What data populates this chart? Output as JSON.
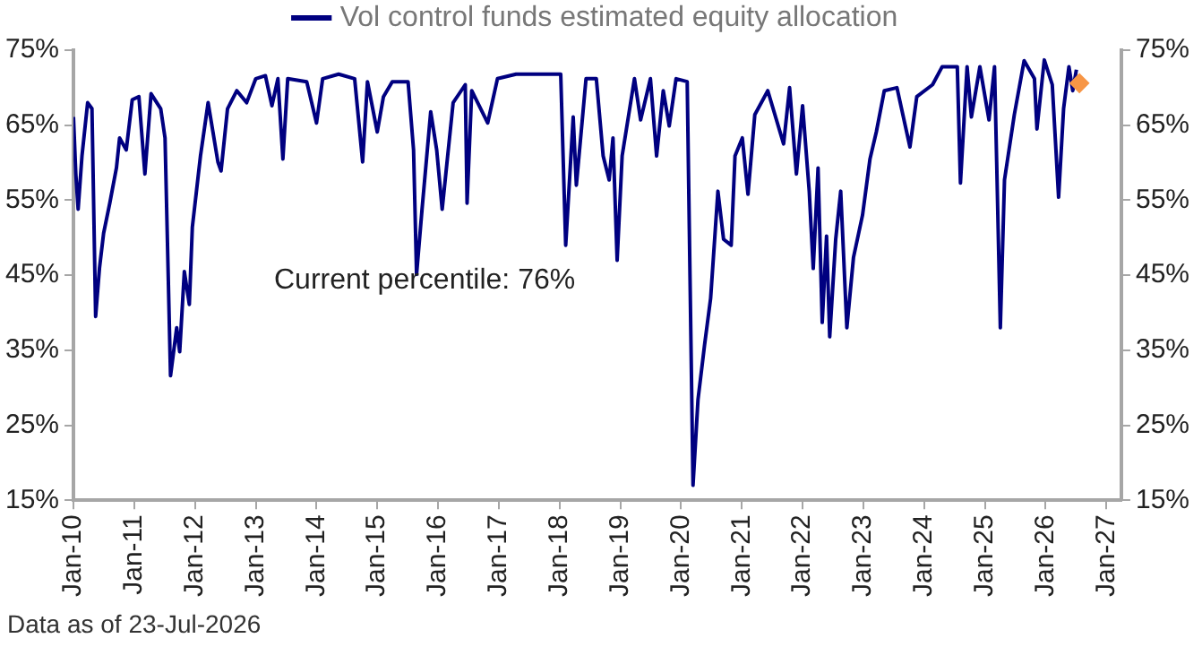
{
  "chart_data": {
    "type": "line",
    "annotations": [
      "Current percentile: 76%",
      "Data as of 23-Jul-2026"
    ],
    "series": [
      {
        "name": "Vol control funds estimated equity allocation",
        "color": "#000080",
        "x": [
          "2010-01-01",
          "2010-01-15",
          "2010-01-29",
          "2010-02-21",
          "2010-03-27",
          "2010-04-22",
          "2010-05-14",
          "2010-06-06",
          "2010-07-01",
          "2010-08-07",
          "2010-09-16",
          "2010-10-05",
          "2010-11-14",
          "2010-12-20",
          "2011-01-29",
          "2011-03-06",
          "2011-04-12",
          "2011-06-09",
          "2011-07-05",
          "2011-08-07",
          "2011-09-13",
          "2011-10-01",
          "2011-10-29",
          "2011-11-28",
          "2011-12-16",
          "2012-02-03",
          "2012-03-20",
          "2012-05-18",
          "2012-06-06",
          "2012-07-15",
          "2012-09-09",
          "2012-11-07",
          "2013-01-01",
          "2013-02-28",
          "2013-04-08",
          "2013-05-14",
          "2013-06-13",
          "2013-07-12",
          "2013-11-03",
          "2014-01-01",
          "2014-02-07",
          "2014-05-14",
          "2014-08-18",
          "2014-10-05",
          "2014-11-03",
          "2015-01-01",
          "2015-02-07",
          "2015-04-01",
          "2015-07-05",
          "2015-08-07",
          "2015-08-25",
          "2015-09-27",
          "2015-11-18",
          "2015-12-24",
          "2016-01-26",
          "2016-04-01",
          "2016-06-13",
          "2016-06-24",
          "2016-07-22",
          "2016-10-26",
          "2016-12-24",
          "2017-04-15",
          "2018-01-08",
          "2018-02-07",
          "2018-03-24",
          "2018-04-12",
          "2018-06-09",
          "2018-08-10",
          "2018-09-20",
          "2018-10-26",
          "2018-11-18",
          "2018-12-13",
          "2019-01-12",
          "2019-03-27",
          "2019-05-03",
          "2019-07-01",
          "2019-08-07",
          "2019-09-16",
          "2019-10-22",
          "2019-12-02",
          "2020-02-07",
          "2020-03-13",
          "2020-04-12",
          "2020-05-21",
          "2020-06-27",
          "2020-08-10",
          "2020-09-13",
          "2020-10-29",
          "2020-11-21",
          "2021-01-04",
          "2021-02-07",
          "2021-03-20",
          "2021-06-06",
          "2021-09-09",
          "2021-10-15",
          "2021-11-25",
          "2022-01-01",
          "2022-02-10",
          "2022-03-06",
          "2022-04-04",
          "2022-04-29",
          "2022-05-25",
          "2022-06-13",
          "2022-07-19",
          "2022-08-18",
          "2022-09-24",
          "2022-11-03",
          "2022-12-27",
          "2023-02-10",
          "2023-03-20",
          "2023-05-07",
          "2023-07-22",
          "2023-10-08",
          "2023-11-18",
          "2024-02-21",
          "2024-04-19",
          "2024-07-19",
          "2024-08-07",
          "2024-09-16",
          "2024-10-12",
          "2024-12-02",
          "2025-01-26",
          "2025-02-28",
          "2025-03-13",
          "2025-04-04",
          "2025-04-29",
          "2025-06-27",
          "2025-08-25",
          "2025-10-26",
          "2025-11-10",
          "2025-12-24",
          "2026-02-10",
          "2026-03-20",
          "2026-04-19",
          "2026-05-21",
          "2026-06-13",
          "2026-07-05"
        ],
        "values": [
          66.1,
          58.5,
          53.8,
          60.9,
          68.0,
          67.2,
          39.5,
          45.9,
          50.6,
          54.6,
          59.3,
          63.3,
          61.7,
          68.4,
          68.8,
          58.5,
          69.2,
          67.2,
          63.3,
          31.6,
          38.0,
          34.8,
          45.5,
          41.1,
          51.4,
          60.9,
          68.0,
          60.1,
          58.9,
          67.2,
          69.6,
          68.0,
          71.2,
          71.6,
          67.6,
          71.2,
          60.5,
          71.2,
          70.8,
          65.3,
          71.2,
          71.8,
          71.2,
          60.1,
          70.8,
          64.1,
          68.8,
          70.8,
          70.8,
          61.7,
          45.1,
          53.8,
          66.8,
          61.7,
          53.8,
          68.0,
          70.4,
          54.6,
          69.6,
          65.3,
          71.2,
          71.8,
          71.8,
          49.0,
          66.1,
          57.0,
          71.2,
          71.2,
          60.9,
          57.7,
          63.3,
          47.0,
          60.9,
          71.2,
          65.7,
          71.2,
          60.9,
          69.6,
          64.9,
          71.2,
          70.8,
          17.0,
          28.4,
          35.6,
          41.9,
          56.2,
          49.8,
          49.0,
          60.9,
          63.3,
          55.8,
          66.4,
          69.6,
          62.5,
          70.0,
          58.5,
          67.6,
          56.2,
          45.9,
          59.3,
          38.7,
          50.2,
          36.8,
          49.8,
          56.2,
          38.0,
          47.4,
          53.0,
          60.5,
          64.1,
          69.6,
          70.0,
          62.1,
          68.8,
          70.4,
          72.8,
          72.8,
          57.3,
          72.8,
          66.1,
          72.8,
          65.7,
          72.8,
          60.1,
          38.0,
          57.7,
          66.4,
          73.6,
          71.2,
          64.5,
          73.7,
          70.4,
          55.4,
          67.2,
          72.8,
          69.6,
          72.4
        ]
      },
      {
        "type": "scatter",
        "color": "#f79646",
        "marker": "diamond",
        "x": [
          "2026-07-23"
        ],
        "values": [
          70.6
        ]
      }
    ],
    "xlim": [
      "2010-01-01",
      "2027-04-01"
    ],
    "xticks": [
      {
        "value": "2010-01-01",
        "label": "Jan-10"
      },
      {
        "value": "2011-01-01",
        "label": "Jan-11"
      },
      {
        "value": "2012-01-01",
        "label": "Jan-12"
      },
      {
        "value": "2013-01-01",
        "label": "Jan-13"
      },
      {
        "value": "2014-01-01",
        "label": "Jan-14"
      },
      {
        "value": "2015-01-01",
        "label": "Jan-15"
      },
      {
        "value": "2016-01-01",
        "label": "Jan-16"
      },
      {
        "value": "2017-01-01",
        "label": "Jan-17"
      },
      {
        "value": "2018-01-01",
        "label": "Jan-18"
      },
      {
        "value": "2019-01-01",
        "label": "Jan-19"
      },
      {
        "value": "2020-01-01",
        "label": "Jan-20"
      },
      {
        "value": "2021-01-01",
        "label": "Jan-21"
      },
      {
        "value": "2022-01-01",
        "label": "Jan-22"
      },
      {
        "value": "2023-01-01",
        "label": "Jan-23"
      },
      {
        "value": "2024-01-01",
        "label": "Jan-24"
      },
      {
        "value": "2025-01-01",
        "label": "Jan-25"
      },
      {
        "value": "2026-01-01",
        "label": "Jan-26"
      },
      {
        "value": "2027-01-01",
        "label": "Jan-27"
      }
    ],
    "ylim": [
      15,
      75
    ],
    "yticks": [
      {
        "value": 15,
        "label": "15%"
      },
      {
        "value": 25,
        "label": "25%"
      },
      {
        "value": 35,
        "label": "35%"
      },
      {
        "value": 45,
        "label": "45%"
      },
      {
        "value": 55,
        "label": "55%"
      },
      {
        "value": 65,
        "label": "65%"
      },
      {
        "value": 75,
        "label": "75%"
      }
    ],
    "y2lim": [
      15,
      75
    ],
    "y2ticks": [
      {
        "value": 15,
        "label": "15%"
      },
      {
        "value": 25,
        "label": "25%"
      },
      {
        "value": 35,
        "label": "35%"
      },
      {
        "value": 45,
        "label": "45%"
      },
      {
        "value": 55,
        "label": "55%"
      },
      {
        "value": 65,
        "label": "65%"
      },
      {
        "value": 75,
        "label": "75%"
      }
    ],
    "legend": "top",
    "marker": "none",
    "line_style": "solid"
  }
}
